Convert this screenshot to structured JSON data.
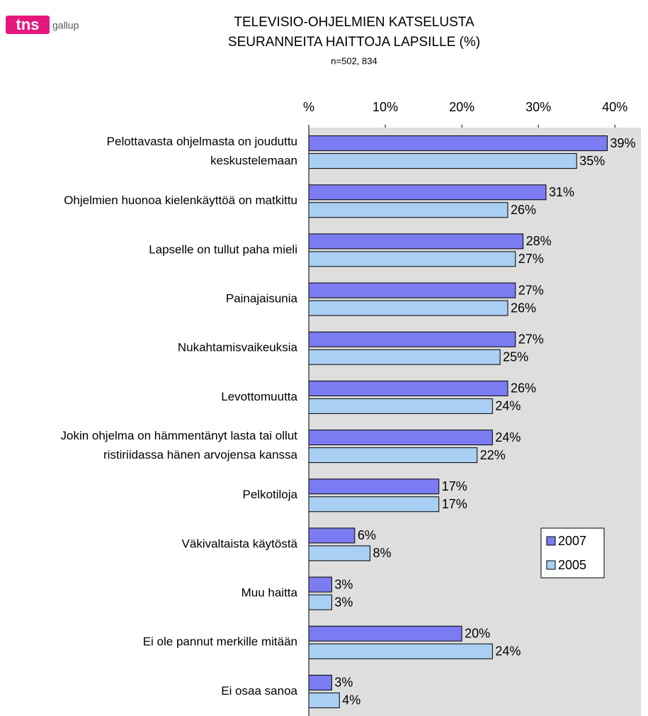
{
  "logo": {
    "brand": "tns",
    "sub": "gallup"
  },
  "chart_data": {
    "type": "hbar",
    "title": "TELEVISIO-OHJELMIEN KATSELUSTA\nSEURANNEITA HAITTOJA LAPSILLE (%)",
    "subtitle": "n=502, 834",
    "categories": [
      "Pelottavasta ohjelmasta on jouduttu\nkeskustelemaan",
      "Ohjelmien huonoa kielenkäyttöä on matkittu",
      "Lapselle on tullut paha mieli",
      "Painajaisunia",
      "Nukahtamisvaikeuksia",
      "Levottomuutta",
      "Jokin ohjelma on hämmentänyt lasta tai ollut\nristiriidassa hänen arvojensa kanssa",
      "Pelkotiloja",
      "Väkivaltaista käytöstä",
      "Muu haitta",
      "Ei ole pannut merkille mitään",
      "Ei osaa sanoa"
    ],
    "series": [
      {
        "name": "2007",
        "color": "#7b7bf2",
        "values": [
          39,
          31,
          28,
          27,
          27,
          26,
          24,
          17,
          6,
          3,
          20,
          3
        ],
        "value_labels": [
          "39%",
          "31%",
          "28%",
          "27%",
          "27%",
          "26%",
          "24%",
          "17%",
          "6%",
          "3%",
          "20%",
          "3%"
        ]
      },
      {
        "name": "2005",
        "color": "#a9cff3",
        "values": [
          35,
          26,
          27,
          26,
          25,
          24,
          22,
          17,
          8,
          3,
          24,
          4
        ],
        "value_labels": [
          "35%",
          "26%",
          "27%",
          "26%",
          "25%",
          "24%",
          "22%",
          "17%",
          "8%",
          "3%",
          "24%",
          "4%"
        ]
      }
    ],
    "xlim": [
      0,
      43.4
    ],
    "xticks": [
      {
        "value": 0,
        "label": "%"
      },
      {
        "value": 10,
        "label": "10%"
      },
      {
        "value": 20,
        "label": "20%"
      },
      {
        "value": 30,
        "label": "30%"
      },
      {
        "value": 40,
        "label": "40%"
      }
    ],
    "background": "#dedede",
    "legend": "lower-right"
  }
}
